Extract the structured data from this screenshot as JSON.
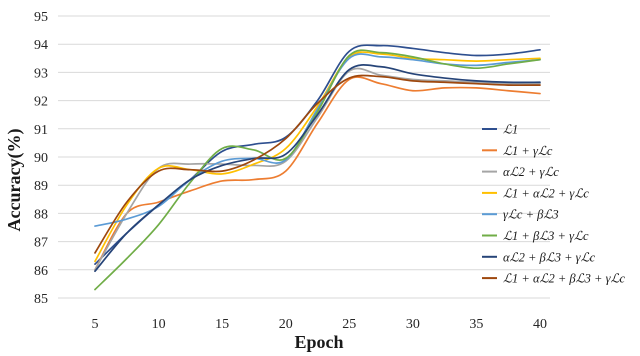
{
  "chart_data": {
    "type": "line",
    "title": "",
    "xlabel": "Epoch",
    "ylabel": "Accuracy(%)",
    "xlim": [
      5,
      40
    ],
    "ylim": [
      85,
      95
    ],
    "x_ticks": [
      5,
      10,
      15,
      20,
      25,
      30,
      35,
      40
    ],
    "y_ticks": [
      85,
      86,
      87,
      88,
      89,
      90,
      91,
      92,
      93,
      94,
      95
    ],
    "grid": "horizontal",
    "legend_position": "right",
    "x": [
      5,
      7.5,
      10,
      12.5,
      15,
      17.5,
      20,
      22.5,
      25,
      27.5,
      30,
      32.5,
      35,
      37.5,
      40
    ],
    "series": [
      {
        "name": "ℒ1",
        "color": "#2e4f8f",
        "values": [
          86.2,
          87.3,
          88.3,
          89.2,
          90.2,
          90.45,
          90.7,
          92.0,
          93.75,
          93.95,
          93.85,
          93.7,
          93.6,
          93.65,
          93.8
        ]
      },
      {
        "name": "ℒ1 + γℒc",
        "color": "#ed7d31",
        "values": [
          86.0,
          88.0,
          88.4,
          88.8,
          89.15,
          89.2,
          89.5,
          91.2,
          92.75,
          92.6,
          92.35,
          92.45,
          92.45,
          92.35,
          92.25
        ]
      },
      {
        "name": "αℒ2 + γℒc",
        "color": "#a5a5a5",
        "values": [
          86.0,
          88.0,
          89.6,
          89.75,
          89.75,
          89.7,
          89.85,
          91.4,
          93.05,
          92.9,
          92.75,
          92.7,
          92.65,
          92.6,
          92.6
        ]
      },
      {
        "name": "ℒ1 + αℒ2 + γℒc",
        "color": "#ffc000",
        "values": [
          86.3,
          88.3,
          89.6,
          89.55,
          89.4,
          89.75,
          90.3,
          91.8,
          93.55,
          93.65,
          93.5,
          93.45,
          93.4,
          93.45,
          93.5
        ]
      },
      {
        "name": "γℒc + βℒ3",
        "color": "#5b9bd5",
        "values": [
          87.55,
          87.8,
          88.25,
          89.2,
          89.85,
          89.95,
          89.9,
          91.7,
          93.5,
          93.55,
          93.45,
          93.3,
          93.25,
          93.35,
          93.45
        ]
      },
      {
        "name": "ℒ1 + βℒ3 + γℒc",
        "color": "#70ad47",
        "values": [
          85.3,
          86.4,
          87.6,
          89.1,
          90.3,
          90.25,
          89.95,
          91.6,
          93.6,
          93.7,
          93.55,
          93.3,
          93.15,
          93.3,
          93.45
        ]
      },
      {
        "name": "αℒ2 + βℒ3 + γℒc",
        "color": "#264478",
        "values": [
          85.95,
          87.3,
          88.3,
          89.2,
          89.7,
          89.95,
          90.1,
          91.5,
          93.1,
          93.2,
          92.95,
          92.8,
          92.7,
          92.65,
          92.65
        ]
      },
      {
        "name": "ℒ1 + αℒ2 + βℒ3 + γℒc",
        "color": "#9e480e",
        "values": [
          86.6,
          88.4,
          89.5,
          89.55,
          89.5,
          89.9,
          90.65,
          91.9,
          92.8,
          92.85,
          92.7,
          92.65,
          92.6,
          92.55,
          92.55
        ]
      }
    ]
  }
}
